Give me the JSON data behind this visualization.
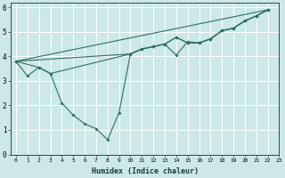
{
  "xlabel": "Humidex (Indice chaleur)",
  "xlim": [
    -0.5,
    23
  ],
  "ylim": [
    0,
    6.2
  ],
  "xticks": [
    0,
    1,
    2,
    3,
    4,
    5,
    6,
    7,
    8,
    9,
    10,
    11,
    12,
    13,
    14,
    15,
    16,
    17,
    18,
    19,
    20,
    21,
    22,
    23
  ],
  "yticks": [
    0,
    1,
    2,
    3,
    4,
    5,
    6
  ],
  "bg_color": "#cce8e8",
  "grid_color": "#ffffff",
  "line_color": "#2d7060",
  "line1_x": [
    0,
    1,
    2,
    3,
    4,
    5,
    6,
    7,
    8,
    9,
    10,
    11,
    12,
    13,
    14,
    15,
    16,
    17,
    18,
    19,
    20,
    21,
    22
  ],
  "line1_y": [
    3.8,
    3.2,
    3.55,
    3.3,
    2.1,
    1.6,
    1.25,
    1.05,
    0.6,
    1.7,
    4.1,
    4.3,
    4.4,
    4.5,
    4.05,
    4.6,
    4.55,
    4.7,
    5.05,
    5.15,
    5.45,
    5.65,
    5.9
  ],
  "line2_x": [
    0,
    2,
    3,
    10,
    11,
    12,
    13,
    14,
    15,
    16,
    17,
    18,
    19,
    20,
    21,
    22
  ],
  "line2_y": [
    3.8,
    3.55,
    3.3,
    4.1,
    4.3,
    4.4,
    4.5,
    4.78,
    4.55,
    4.55,
    4.72,
    5.05,
    5.15,
    5.45,
    5.65,
    5.9
  ],
  "line3_x": [
    0,
    10,
    11,
    12,
    13,
    14,
    15,
    16,
    17,
    18,
    19,
    20,
    21,
    22
  ],
  "line3_y": [
    3.8,
    4.1,
    4.3,
    4.4,
    4.5,
    4.78,
    4.55,
    4.55,
    4.72,
    5.05,
    5.15,
    5.45,
    5.65,
    5.9
  ],
  "line4_x": [
    0,
    22
  ],
  "line4_y": [
    3.8,
    5.9
  ]
}
